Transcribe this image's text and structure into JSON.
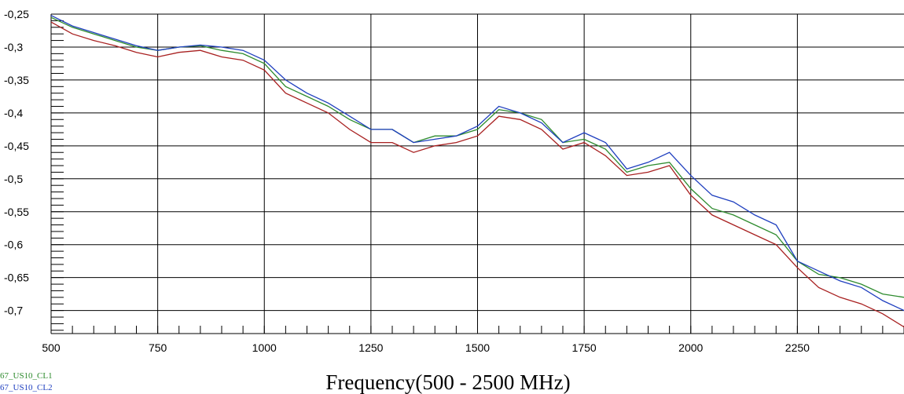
{
  "chart_data": {
    "type": "line",
    "xlabel": "Frequency(500 - 2500 MHz)",
    "ylabel": "",
    "xlim": [
      500,
      2500
    ],
    "ylim": [
      -0.735,
      -0.25
    ],
    "grid": true,
    "legend_position": "bottom-left",
    "x_ticks": [
      500,
      750,
      1000,
      1250,
      1500,
      1750,
      2000,
      2250
    ],
    "x_tick_labels": [
      "500",
      "750",
      "1000",
      "1250",
      "1500",
      "1750",
      "2000",
      "2250"
    ],
    "y_ticks": [
      -0.25,
      -0.3,
      -0.35,
      -0.4,
      -0.45,
      -0.5,
      -0.55,
      -0.6,
      -0.65,
      -0.7
    ],
    "y_tick_labels": [
      "-0,25",
      "-0,3",
      "-0,35",
      "-0,4",
      "-0,45",
      "-0,5",
      "-0,55",
      "-0,6",
      "-0,65",
      "-0,7"
    ],
    "x": [
      500,
      550,
      600,
      650,
      700,
      750,
      800,
      850,
      900,
      950,
      1000,
      1050,
      1100,
      1150,
      1200,
      1250,
      1300,
      1350,
      1400,
      1450,
      1500,
      1550,
      1600,
      1650,
      1700,
      1750,
      1800,
      1850,
      1900,
      1950,
      2000,
      2050,
      2100,
      2150,
      2200,
      2250,
      2300,
      2350,
      2400,
      2450,
      2500
    ],
    "series": [
      {
        "name": "67_US10_CL1",
        "color": "#2e8b2e",
        "values": [
          -0.255,
          -0.27,
          -0.28,
          -0.29,
          -0.3,
          -0.305,
          -0.3,
          -0.298,
          -0.305,
          -0.31,
          -0.325,
          -0.36,
          -0.375,
          -0.39,
          -0.41,
          -0.425,
          -0.425,
          -0.445,
          -0.435,
          -0.435,
          -0.425,
          -0.395,
          -0.4,
          -0.41,
          -0.445,
          -0.44,
          -0.455,
          -0.49,
          -0.48,
          -0.475,
          -0.515,
          -0.545,
          -0.555,
          -0.57,
          -0.585,
          -0.625,
          -0.645,
          -0.65,
          -0.66,
          -0.675,
          -0.68
        ]
      },
      {
        "name": "67_US10_CL2",
        "color": "#1f3fbf",
        "values": [
          -0.252,
          -0.268,
          -0.278,
          -0.288,
          -0.298,
          -0.305,
          -0.3,
          -0.297,
          -0.3,
          -0.305,
          -0.32,
          -0.35,
          -0.37,
          -0.385,
          -0.405,
          -0.425,
          -0.425,
          -0.445,
          -0.44,
          -0.435,
          -0.42,
          -0.39,
          -0.4,
          -0.415,
          -0.445,
          -0.43,
          -0.445,
          -0.485,
          -0.475,
          -0.46,
          -0.495,
          -0.525,
          -0.535,
          -0.555,
          -0.57,
          -0.625,
          -0.64,
          -0.655,
          -0.665,
          -0.685,
          -0.7
        ]
      },
      {
        "name": "",
        "color": "#a82020",
        "values": [
          -0.262,
          -0.28,
          -0.29,
          -0.298,
          -0.308,
          -0.315,
          -0.308,
          -0.305,
          -0.315,
          -0.32,
          -0.335,
          -0.37,
          -0.385,
          -0.4,
          -0.425,
          -0.445,
          -0.445,
          -0.46,
          -0.45,
          -0.445,
          -0.435,
          -0.405,
          -0.41,
          -0.425,
          -0.455,
          -0.445,
          -0.465,
          -0.495,
          -0.49,
          -0.48,
          -0.525,
          -0.555,
          -0.57,
          -0.585,
          -0.6,
          -0.635,
          -0.665,
          -0.68,
          -0.69,
          -0.705,
          -0.725
        ]
      }
    ]
  },
  "legend": {
    "entries": [
      {
        "label": "67_US10_CL1",
        "color": "#2e8b2e"
      },
      {
        "label": "67_US10_CL2",
        "color": "#1f3fbf"
      }
    ]
  }
}
